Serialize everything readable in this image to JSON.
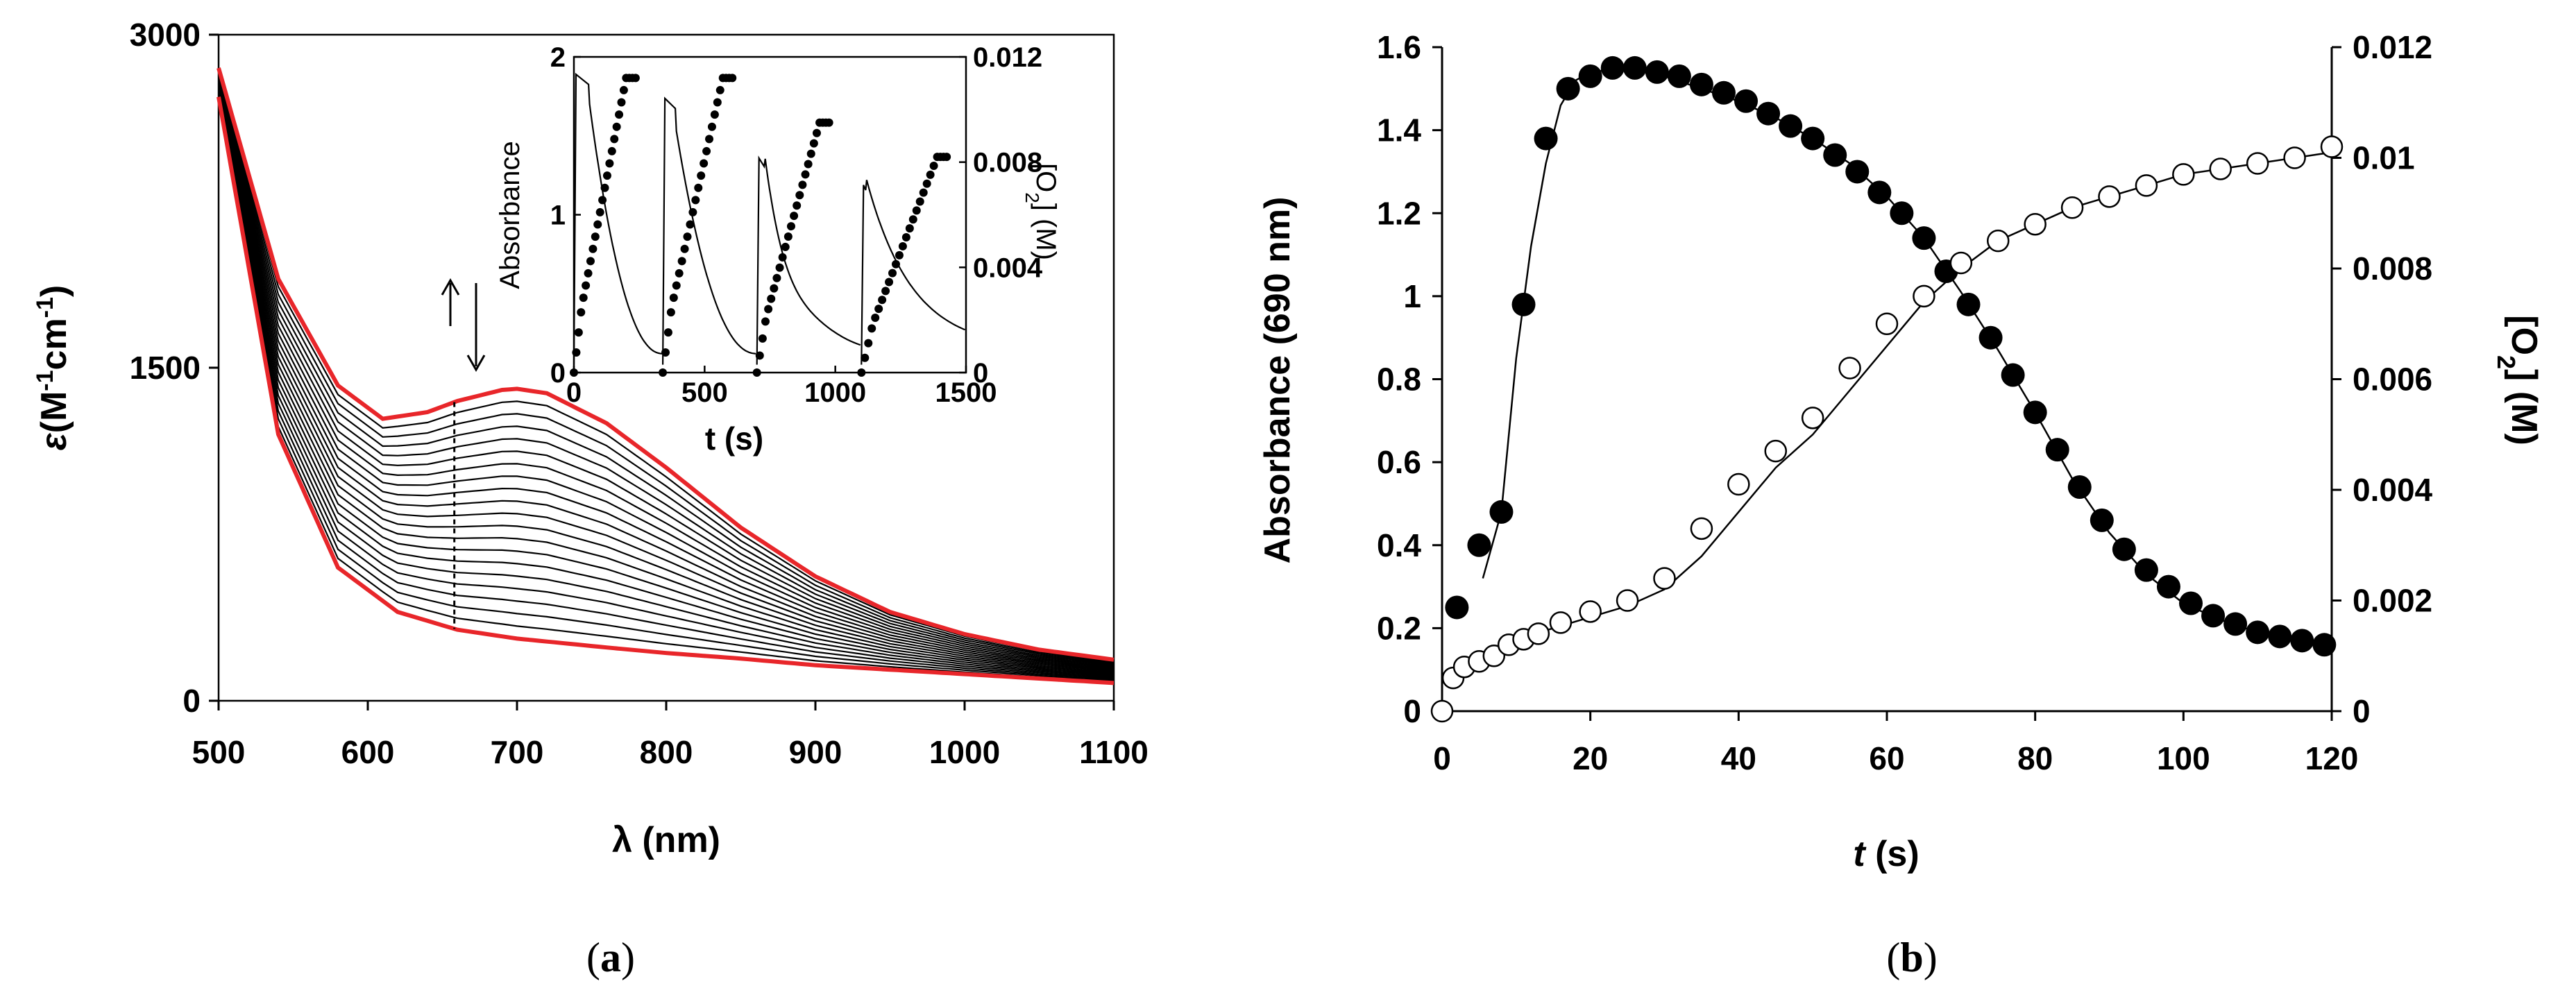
{
  "chart_data": [
    {
      "panel": "a",
      "type": "line",
      "caption": "a",
      "xlabel": "λ (nm)",
      "ylabel": {
        "sym": "ε",
        "base": "(M",
        "sup1": "-1",
        "mid": "cm",
        "sup2": "-1",
        "end": ")"
      },
      "xlim": [
        500,
        1100
      ],
      "ylim": [
        0,
        3000
      ],
      "xticks": [
        "500",
        "600",
        "700",
        "800",
        "900",
        "1000",
        "1100"
      ],
      "yticks": [
        "0",
        "1500",
        "3000"
      ],
      "colors": {
        "spectra": "#000000",
        "bounds": "#e8262a"
      },
      "bounds": {
        "top": {
          "x": [
            500,
            540,
            580,
            610,
            640,
            660,
            690,
            700,
            720,
            760,
            800,
            850,
            900,
            950,
            1000,
            1050,
            1100
          ],
          "y": [
            2850,
            1900,
            1420,
            1270,
            1300,
            1350,
            1400,
            1405,
            1385,
            1250,
            1050,
            780,
            560,
            400,
            300,
            230,
            185
          ]
        },
        "bottom": {
          "x": [
            500,
            540,
            580,
            620,
            660,
            700,
            760,
            800,
            850,
            900,
            950,
            1000,
            1050,
            1100
          ],
          "y": [
            2720,
            1200,
            600,
            400,
            320,
            280,
            240,
            215,
            190,
            160,
            140,
            120,
            100,
            80
          ]
        }
      },
      "spectra_count": 20,
      "arrows": [
        "up",
        "down"
      ],
      "inset": {
        "type": "line+scatter",
        "xlabel": "t (s)",
        "ylabel_left": "Absorbance",
        "ylabel_right": {
          "pre": "[O",
          "sub": "2",
          "post": "] (M)"
        },
        "xlim": [
          0,
          1500
        ],
        "ylim_left": [
          0,
          2
        ],
        "ylim_right": [
          0,
          0.012
        ],
        "xticks": [
          "0",
          "500",
          "1000",
          "1500"
        ],
        "yticks_left": [
          "0",
          "1",
          "2"
        ],
        "yticks_right": [
          "0",
          "0.004",
          "0.008",
          "0.012"
        ],
        "cycles": [
          {
            "start": 0,
            "absorbance_peak": 1.9,
            "o2_end": 0.0112,
            "o2_duration": 200
          },
          {
            "start": 340,
            "absorbance_peak": 1.75,
            "o2_end": 0.0112,
            "o2_duration": 230
          },
          {
            "start": 700,
            "absorbance_peak": 1.38,
            "o2_end": 0.0095,
            "o2_duration": 240
          },
          {
            "start": 1100,
            "absorbance_peak": 1.22,
            "o2_end": 0.0082,
            "o2_duration": 290
          }
        ]
      }
    },
    {
      "panel": "b",
      "type": "scatter+line",
      "caption": "b",
      "xlabel": {
        "sym": "t",
        "unit": " (s)"
      },
      "ylabel_left": "Absorbance (690 nm)",
      "ylabel_right": {
        "pre": "[O",
        "sub": "2",
        "post": "] (M)"
      },
      "xlim": [
        0,
        120
      ],
      "ylim_left": [
        0,
        1.6
      ],
      "ylim_right": [
        0,
        0.012
      ],
      "xticks": [
        "0",
        "20",
        "40",
        "60",
        "80",
        "100",
        "120"
      ],
      "yticks_left": [
        "0",
        "0.2",
        "0.4",
        "0.6",
        "0.8",
        "1",
        "1.2",
        "1.4",
        "1.6"
      ],
      "yticks_right": [
        "0",
        "0.002",
        "0.004",
        "0.006",
        "0.008",
        "0.01",
        "0.012"
      ],
      "series": [
        {
          "name": "Absorbance (690 nm)",
          "marker": "filled-circle",
          "axis": "left",
          "x": [
            2,
            5,
            8,
            11,
            14,
            17,
            20,
            23,
            26,
            29,
            32,
            35,
            38,
            41,
            44,
            47,
            50,
            53,
            56,
            59,
            62,
            65,
            68,
            71,
            74,
            77,
            80,
            83,
            86,
            89,
            92,
            95,
            98,
            101,
            104,
            107,
            110,
            113,
            116,
            119
          ],
          "y": [
            0.25,
            0.4,
            0.48,
            0.98,
            1.38,
            1.5,
            1.53,
            1.55,
            1.55,
            1.54,
            1.53,
            1.51,
            1.49,
            1.47,
            1.44,
            1.41,
            1.38,
            1.34,
            1.3,
            1.25,
            1.2,
            1.14,
            1.06,
            0.98,
            0.9,
            0.81,
            0.72,
            0.63,
            0.54,
            0.46,
            0.39,
            0.34,
            0.3,
            0.26,
            0.23,
            0.21,
            0.19,
            0.18,
            0.17,
            0.16
          ]
        },
        {
          "name": "Absorbance fit",
          "marker": "line",
          "axis": "left",
          "x": [
            5.5,
            8,
            10,
            12,
            14,
            16,
            18,
            20,
            25,
            30,
            35,
            40,
            45,
            50,
            55,
            60,
            65,
            70,
            75,
            80,
            85,
            90,
            95,
            100,
            105,
            110,
            115,
            120
          ],
          "y": [
            0.32,
            0.48,
            0.85,
            1.12,
            1.32,
            1.46,
            1.52,
            1.54,
            1.55,
            1.53,
            1.5,
            1.47,
            1.43,
            1.38,
            1.32,
            1.24,
            1.14,
            1.01,
            0.87,
            0.72,
            0.56,
            0.43,
            0.33,
            0.26,
            0.22,
            0.19,
            0.17,
            0.16
          ]
        },
        {
          "name": "[O2] (M)",
          "marker": "open-circle",
          "axis": "right",
          "x": [
            0,
            1.5,
            3,
            5,
            7,
            9,
            11,
            13,
            16,
            20,
            25,
            30,
            35,
            40,
            45,
            50,
            55,
            60,
            65,
            70,
            75,
            80,
            85,
            90,
            95,
            100,
            105,
            110,
            115,
            120
          ],
          "y": [
            0,
            0.0006,
            0.0008,
            0.0009,
            0.001,
            0.0012,
            0.0013,
            0.0014,
            0.0016,
            0.0018,
            0.002,
            0.0024,
            0.0033,
            0.0041,
            0.0047,
            0.0053,
            0.0062,
            0.007,
            0.0075,
            0.0081,
            0.0085,
            0.0088,
            0.0091,
            0.0093,
            0.0095,
            0.0097,
            0.0098,
            0.0099,
            0.01,
            0.0102
          ]
        },
        {
          "name": "[O2] fit",
          "marker": "line",
          "axis": "right",
          "x": [
            0,
            2,
            5,
            10,
            15,
            20,
            25,
            30,
            35,
            40,
            45,
            50,
            55,
            60,
            65,
            70,
            75,
            80,
            85,
            90,
            95,
            100,
            105,
            110,
            115,
            120
          ],
          "y": [
            0.0006,
            0.0008,
            0.001,
            0.0013,
            0.0015,
            0.0017,
            0.0019,
            0.0022,
            0.0028,
            0.0036,
            0.0044,
            0.005,
            0.0058,
            0.0066,
            0.0074,
            0.008,
            0.0085,
            0.0088,
            0.0091,
            0.0093,
            0.0095,
            0.0097,
            0.0098,
            0.0099,
            0.01,
            0.0101
          ]
        }
      ]
    }
  ]
}
